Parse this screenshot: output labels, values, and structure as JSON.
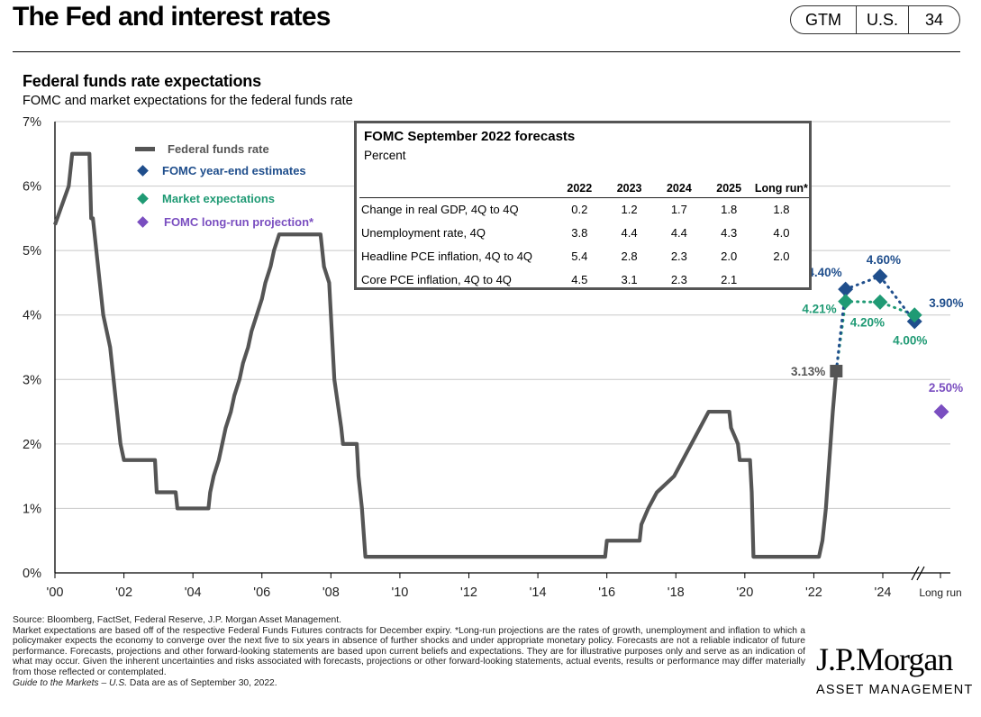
{
  "header": {
    "title": "The Fed and interest rates",
    "badge": [
      "GTM",
      "U.S.",
      "34"
    ]
  },
  "chart_data": {
    "type": "line",
    "title": "Federal funds rate expectations",
    "subtitle": "FOMC and market expectations for the federal funds rate",
    "xlabel": "",
    "ylabel": "",
    "ylim": [
      0,
      7
    ],
    "xlim": [
      2000,
      2025.7
    ],
    "grid": true,
    "y_ticks": [
      "0%",
      "1%",
      "2%",
      "3%",
      "4%",
      "5%",
      "6%",
      "7%"
    ],
    "x_ticks": [
      {
        "x": 2000,
        "label": "'00"
      },
      {
        "x": 2002,
        "label": "'02"
      },
      {
        "x": 2004,
        "label": "'04"
      },
      {
        "x": 2006,
        "label": "'06"
      },
      {
        "x": 2008,
        "label": "'08"
      },
      {
        "x": 2010,
        "label": "'10"
      },
      {
        "x": 2012,
        "label": "'12"
      },
      {
        "x": 2014,
        "label": "'14"
      },
      {
        "x": 2016,
        "label": "'16"
      },
      {
        "x": 2018,
        "label": "'18"
      },
      {
        "x": 2020,
        "label": "'20"
      },
      {
        "x": 2022,
        "label": "'22"
      },
      {
        "x": 2024,
        "label": "'24"
      },
      {
        "x": 2025.2,
        "label": "Long run"
      }
    ],
    "legend": {
      "placement": "top-left",
      "items": [
        {
          "label": "Federal funds rate",
          "color": "#555555",
          "marker": "line"
        },
        {
          "label": "FOMC year-end estimates",
          "color": "#1f4e8c",
          "marker": "diamond"
        },
        {
          "label": "Market expectations",
          "color": "#1f9a74",
          "marker": "diamond"
        },
        {
          "label": "FOMC long-run projection*",
          "color": "#7a4ec0",
          "marker": "diamond"
        }
      ]
    },
    "series": [
      {
        "name": "Federal funds rate",
        "color": "#555555",
        "points": [
          [
            2000.0,
            5.4
          ],
          [
            2000.3,
            5.85
          ],
          [
            2000.4,
            6.0
          ],
          [
            2000.5,
            6.5
          ],
          [
            2001.0,
            6.5
          ],
          [
            2001.05,
            5.5
          ],
          [
            2001.1,
            5.5
          ],
          [
            2001.3,
            4.5
          ],
          [
            2001.4,
            4.0
          ],
          [
            2001.5,
            3.75
          ],
          [
            2001.6,
            3.5
          ],
          [
            2001.7,
            3.0
          ],
          [
            2001.8,
            2.5
          ],
          [
            2001.9,
            2.0
          ],
          [
            2002.0,
            1.75
          ],
          [
            2002.9,
            1.75
          ],
          [
            2002.95,
            1.25
          ],
          [
            2003.5,
            1.25
          ],
          [
            2003.55,
            1.0
          ],
          [
            2004.45,
            1.0
          ],
          [
            2004.5,
            1.25
          ],
          [
            2004.6,
            1.5
          ],
          [
            2004.75,
            1.75
          ],
          [
            2004.85,
            2.0
          ],
          [
            2004.95,
            2.25
          ],
          [
            2005.1,
            2.5
          ],
          [
            2005.2,
            2.75
          ],
          [
            2005.35,
            3.0
          ],
          [
            2005.45,
            3.25
          ],
          [
            2005.6,
            3.5
          ],
          [
            2005.7,
            3.75
          ],
          [
            2005.85,
            4.0
          ],
          [
            2006.0,
            4.25
          ],
          [
            2006.1,
            4.5
          ],
          [
            2006.25,
            4.75
          ],
          [
            2006.35,
            5.0
          ],
          [
            2006.5,
            5.25
          ],
          [
            2007.7,
            5.25
          ],
          [
            2007.8,
            4.75
          ],
          [
            2007.95,
            4.5
          ],
          [
            2008.05,
            3.5
          ],
          [
            2008.1,
            3.0
          ],
          [
            2008.3,
            2.25
          ],
          [
            2008.35,
            2.0
          ],
          [
            2008.75,
            2.0
          ],
          [
            2008.8,
            1.5
          ],
          [
            2008.9,
            1.0
          ],
          [
            2009.0,
            0.25
          ],
          [
            2015.95,
            0.25
          ],
          [
            2016.0,
            0.5
          ],
          [
            2016.95,
            0.5
          ],
          [
            2017.0,
            0.75
          ],
          [
            2017.2,
            1.0
          ],
          [
            2017.45,
            1.25
          ],
          [
            2017.95,
            1.5
          ],
          [
            2018.2,
            1.75
          ],
          [
            2018.45,
            2.0
          ],
          [
            2018.7,
            2.25
          ],
          [
            2018.95,
            2.5
          ],
          [
            2019.55,
            2.5
          ],
          [
            2019.6,
            2.25
          ],
          [
            2019.8,
            2.0
          ],
          [
            2019.85,
            1.75
          ],
          [
            2020.15,
            1.75
          ],
          [
            2020.2,
            1.25
          ],
          [
            2020.25,
            0.25
          ],
          [
            2022.15,
            0.25
          ],
          [
            2022.25,
            0.5
          ],
          [
            2022.35,
            1.0
          ],
          [
            2022.45,
            1.75
          ],
          [
            2022.55,
            2.5
          ],
          [
            2022.65,
            3.13
          ]
        ]
      },
      {
        "name": "FOMC year-end estimates",
        "color": "#1f4e8c",
        "points": [
          [
            2022.65,
            3.13
          ],
          [
            2022.92,
            4.4
          ],
          [
            2023.92,
            4.6
          ],
          [
            2024.92,
            3.9
          ]
        ],
        "labels": [
          "",
          "4.40%",
          "4.60%",
          "3.90%"
        ]
      },
      {
        "name": "Market expectations",
        "color": "#1f9a74",
        "points": [
          [
            2022.65,
            3.13
          ],
          [
            2022.92,
            4.21
          ],
          [
            2023.92,
            4.2
          ],
          [
            2024.92,
            4.0
          ]
        ],
        "labels": [
          "",
          "4.21%",
          "4.20%",
          "4.00%"
        ]
      },
      {
        "name": "FOMC long-run projection",
        "color": "#7a4ec0",
        "points": [
          [
            2025.2,
            2.5
          ]
        ],
        "labels": [
          "2.50%"
        ]
      }
    ],
    "annotations": [
      {
        "text": "3.13%",
        "x": 2022.65,
        "y": 3.13,
        "color": "#555555"
      }
    ]
  },
  "fomc_table": {
    "title": "FOMC September 2022 forecasts",
    "subtitle": "Percent",
    "columns": [
      "2022",
      "2023",
      "2024",
      "2025",
      "Long run*"
    ],
    "rows": [
      {
        "label": "Change in real GDP, 4Q to 4Q",
        "values": [
          "0.2",
          "1.2",
          "1.7",
          "1.8",
          "1.8"
        ]
      },
      {
        "label": "Unemployment rate, 4Q",
        "values": [
          "3.8",
          "4.4",
          "4.4",
          "4.3",
          "4.0"
        ]
      },
      {
        "label": "Headline PCE inflation, 4Q to 4Q",
        "values": [
          "5.4",
          "2.8",
          "2.3",
          "2.0",
          "2.0"
        ]
      },
      {
        "label": "Core PCE inflation, 4Q to 4Q",
        "values": [
          "4.5",
          "3.1",
          "2.3",
          "2.1",
          ""
        ]
      }
    ]
  },
  "footnotes": {
    "source": "Source: Bloomberg, FactSet, Federal Reserve, J.P. Morgan Asset Management.",
    "body": "Market expectations are based off of the respective Federal Funds Futures contracts for December expiry. *Long-run projections are the rates of growth, unemployment and inflation to which a policymaker expects the economy to converge over the next five to six years in absence of further shocks and under appropriate monetary policy. Forecasts are not a reliable indicator of future performance. Forecasts, projections and other forward-looking statements are based upon current beliefs and expectations. They are for illustrative purposes only and serve as an indication of what may occur. Given the inherent uncertainties and risks associated with forecasts, projections or other forward-looking statements, actual events, results or performance may differ materially from those reflected or contemplated.",
    "guide_italic": "Guide to the Markets – U.S.",
    "guide_date": " Data are as of September 30, 2022."
  },
  "logo": {
    "name": "J.P.Morgan",
    "sub": "ASSET MANAGEMENT"
  }
}
